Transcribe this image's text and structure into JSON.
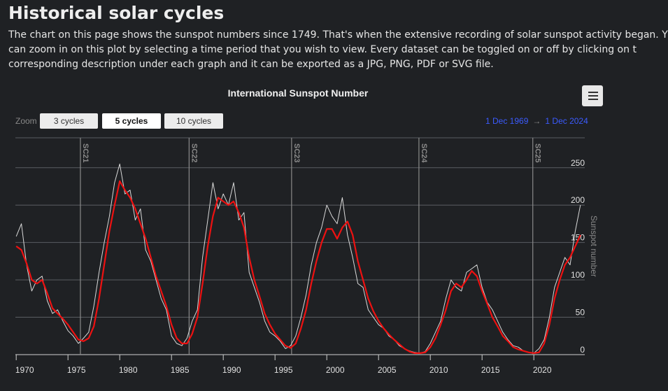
{
  "page": {
    "title": "Historical solar cycles",
    "intro_lines": [
      "The chart on this page shows the sunspot numbers since 1749. That's when the extensive recording of solar sunspot activity began. Y",
      "can zoom in on this plot by selecting a time period that you wish to view. Every dataset can be toggled on or off by clicking on t",
      "corresponding description under each graph and it can be exported as a JPG, PNG, PDF or SVG file."
    ]
  },
  "controls": {
    "zoom_label": "Zoom",
    "buttons": [
      {
        "label": "3 cycles",
        "selected": false
      },
      {
        "label": "5 cycles",
        "selected": true
      },
      {
        "label": "10 cycles",
        "selected": false
      }
    ],
    "range_from": "1 Dec 1969",
    "range_arrow": "→",
    "range_to": "1 Dec 2024",
    "menu_icon": "hamburger-menu-icon"
  },
  "colors": {
    "background": "#1f2124",
    "monthly_line": "#d9d9d9",
    "smoothed_line": "#ee1111",
    "grid": "#5a5d62",
    "cycle_marker": "#8a8a8a",
    "range_date": "#3b5bff"
  },
  "chart_data": {
    "type": "line",
    "title": "International Sunspot Number",
    "ylabel": "Sunspot number",
    "xlim": [
      1969.92,
      2024.92
    ],
    "ylim": [
      0,
      290
    ],
    "x_ticks": [
      1970,
      1975,
      1980,
      1985,
      1990,
      1995,
      2000,
      2005,
      2010,
      2015,
      2020
    ],
    "y_ticks": [
      0,
      50,
      100,
      150,
      200,
      250
    ],
    "grid": true,
    "cycle_markers": [
      {
        "label": "SC21",
        "x": 1976.2
      },
      {
        "label": "SC22",
        "x": 1986.7
      },
      {
        "label": "SC23",
        "x": 1996.6
      },
      {
        "label": "SC24",
        "x": 2008.9
      },
      {
        "label": "SC25",
        "x": 2019.9
      }
    ],
    "series": [
      {
        "role": "monthly",
        "x": [
          1970.0,
          1970.5,
          1971.0,
          1971.5,
          1972.0,
          1972.5,
          1973.0,
          1973.5,
          1974.0,
          1974.5,
          1975.0,
          1975.5,
          1976.0,
          1976.5,
          1977.0,
          1977.5,
          1978.0,
          1978.5,
          1979.0,
          1979.5,
          1980.0,
          1980.5,
          1981.0,
          1981.5,
          1982.0,
          1982.5,
          1983.0,
          1983.5,
          1984.0,
          1984.5,
          1985.0,
          1985.5,
          1986.0,
          1986.5,
          1987.0,
          1987.5,
          1988.0,
          1988.5,
          1989.0,
          1989.5,
          1990.0,
          1990.5,
          1991.0,
          1991.5,
          1992.0,
          1992.5,
          1993.0,
          1993.5,
          1994.0,
          1994.5,
          1995.0,
          1995.5,
          1996.0,
          1996.5,
          1997.0,
          1997.5,
          1998.0,
          1998.5,
          1999.0,
          1999.5,
          2000.0,
          2000.5,
          2001.0,
          2001.5,
          2002.0,
          2002.5,
          2003.0,
          2003.5,
          2004.0,
          2004.5,
          2005.0,
          2005.5,
          2006.0,
          2006.5,
          2007.0,
          2007.5,
          2008.0,
          2008.5,
          2009.0,
          2009.5,
          2010.0,
          2010.5,
          2011.0,
          2011.5,
          2012.0,
          2012.5,
          2013.0,
          2013.5,
          2014.0,
          2014.5,
          2015.0,
          2015.5,
          2016.0,
          2016.5,
          2017.0,
          2017.5,
          2018.0,
          2018.5,
          2019.0,
          2019.5,
          2020.0,
          2020.5,
          2021.0,
          2021.5,
          2022.0,
          2022.5,
          2023.0,
          2023.5,
          2024.0,
          2024.5
        ],
        "y": [
          158,
          175,
          120,
          85,
          100,
          105,
          72,
          55,
          60,
          45,
          32,
          25,
          15,
          22,
          30,
          65,
          110,
          150,
          185,
          230,
          255,
          215,
          220,
          180,
          195,
          140,
          125,
          100,
          75,
          60,
          25,
          15,
          12,
          22,
          45,
          60,
          130,
          180,
          230,
          195,
          215,
          200,
          230,
          180,
          190,
          110,
          90,
          70,
          45,
          30,
          25,
          18,
          8,
          12,
          25,
          50,
          80,
          120,
          150,
          170,
          200,
          185,
          175,
          210,
          160,
          130,
          95,
          90,
          60,
          50,
          40,
          35,
          25,
          20,
          12,
          8,
          5,
          3,
          2,
          4,
          15,
          30,
          45,
          75,
          100,
          90,
          85,
          110,
          115,
          120,
          90,
          70,
          60,
          45,
          30,
          20,
          12,
          10,
          5,
          3,
          2,
          8,
          20,
          50,
          90,
          110,
          130,
          120,
          165,
          200
        ]
      },
      {
        "role": "smoothed",
        "x": [
          1970.0,
          1970.5,
          1971.0,
          1971.5,
          1972.0,
          1972.5,
          1973.0,
          1973.5,
          1974.0,
          1974.5,
          1975.0,
          1975.5,
          1976.0,
          1976.5,
          1977.0,
          1977.5,
          1978.0,
          1978.5,
          1979.0,
          1979.5,
          1980.0,
          1980.5,
          1981.0,
          1981.5,
          1982.0,
          1982.5,
          1983.0,
          1983.5,
          1984.0,
          1984.5,
          1985.0,
          1985.5,
          1986.0,
          1986.5,
          1987.0,
          1987.5,
          1988.0,
          1988.5,
          1989.0,
          1989.5,
          1990.0,
          1990.5,
          1991.0,
          1991.5,
          1992.0,
          1992.5,
          1993.0,
          1993.5,
          1994.0,
          1994.5,
          1995.0,
          1995.5,
          1996.0,
          1996.5,
          1997.0,
          1997.5,
          1998.0,
          1998.5,
          1999.0,
          1999.5,
          2000.0,
          2000.5,
          2001.0,
          2001.5,
          2002.0,
          2002.5,
          2003.0,
          2003.5,
          2004.0,
          2004.5,
          2005.0,
          2005.5,
          2006.0,
          2006.5,
          2007.0,
          2007.5,
          2008.0,
          2008.5,
          2009.0,
          2009.5,
          2010.0,
          2010.5,
          2011.0,
          2011.5,
          2012.0,
          2012.5,
          2013.0,
          2013.5,
          2014.0,
          2014.5,
          2015.0,
          2015.5,
          2016.0,
          2016.5,
          2017.0,
          2017.5,
          2018.0,
          2018.5,
          2019.0,
          2019.5,
          2020.0,
          2020.5,
          2021.0,
          2021.5,
          2022.0,
          2022.5,
          2023.0,
          2023.5,
          2024.0,
          2024.5
        ],
        "y": [
          145,
          140,
          122,
          100,
          95,
          100,
          82,
          62,
          55,
          48,
          40,
          30,
          20,
          18,
          22,
          38,
          75,
          120,
          165,
          200,
          232,
          220,
          210,
          195,
          175,
          155,
          130,
          105,
          85,
          65,
          40,
          22,
          15,
          15,
          28,
          50,
          95,
          145,
          185,
          210,
          205,
          200,
          205,
          190,
          170,
          130,
          100,
          78,
          55,
          40,
          28,
          20,
          12,
          9,
          15,
          35,
          60,
          95,
          125,
          150,
          168,
          168,
          155,
          170,
          178,
          160,
          125,
          100,
          75,
          58,
          45,
          35,
          27,
          20,
          14,
          8,
          4,
          2,
          2,
          3,
          10,
          22,
          40,
          60,
          85,
          95,
          90,
          100,
          112,
          105,
          85,
          68,
          50,
          38,
          25,
          18,
          10,
          7,
          5,
          3,
          2,
          3,
          15,
          40,
          75,
          100,
          120,
          130,
          145,
          160
        ]
      }
    ]
  }
}
